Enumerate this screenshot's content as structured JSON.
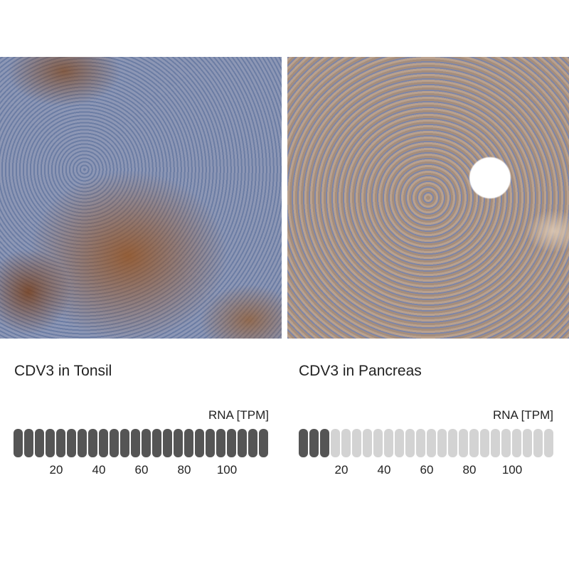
{
  "panels": [
    {
      "title": "CDV3 in Tonsil",
      "rna_label": "RNA [TPM]",
      "segments_total": 24,
      "segments_filled": 24,
      "ticks": [
        "20",
        "40",
        "60",
        "80",
        "100"
      ],
      "image": "immunohistochemistry tonsil tissue"
    },
    {
      "title": "CDV3 in Pancreas",
      "rna_label": "RNA [TPM]",
      "segments_total": 24,
      "segments_filled": 3,
      "ticks": [
        "20",
        "40",
        "60",
        "80",
        "100"
      ],
      "image": "immunohistochemistry pancreas tissue"
    }
  ],
  "colors": {
    "filled": "#555555",
    "empty": "#d3d3d3"
  }
}
